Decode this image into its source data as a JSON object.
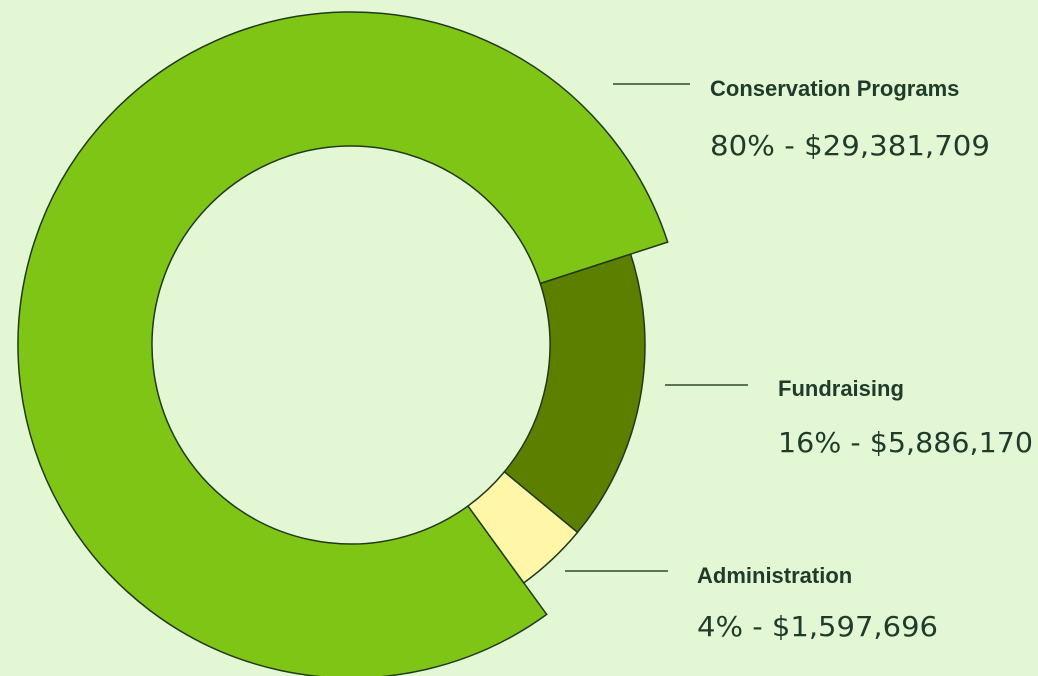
{
  "chart_data": {
    "type": "donut",
    "categories": [
      "Conservation Programs",
      "Fundraising",
      "Administration"
    ],
    "values": [
      80,
      16,
      4
    ],
    "value_labels": [
      "80% - $29,381,709",
      "16% - $5,886,170",
      "4% - $1,597,696"
    ],
    "colors": [
      "#7ec516",
      "#5c7f00",
      "#fff6a8"
    ]
  }
}
